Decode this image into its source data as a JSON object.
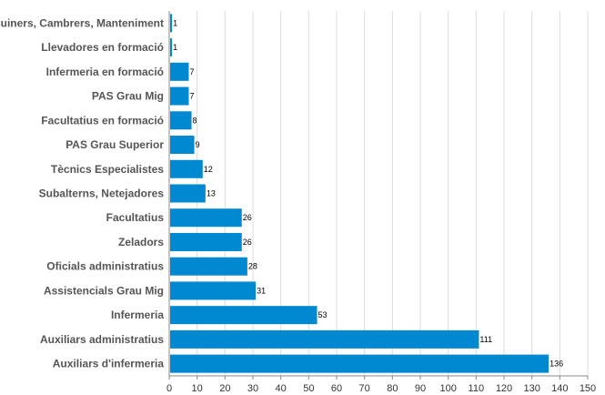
{
  "chart_data": {
    "type": "bar",
    "orientation": "horizontal",
    "categories": [
      "Cuiners, Cambrers, Manteniment",
      "Llevadores en formació",
      "Infermeria en formació",
      "PAS Grau Mig",
      "Facultatius en formació",
      "PAS Grau Superior",
      "Tècnics Especialistes",
      "Subalterns, Netejadores",
      "Facultatius",
      "Zeladors",
      "Oficials administratius",
      "Assistencials Grau Mig",
      "Infermeria",
      "Auxiliars administratius",
      "Auxiliars d'infermeria"
    ],
    "values": [
      1,
      1,
      7,
      7,
      8,
      9,
      12,
      13,
      26,
      26,
      28,
      31,
      53,
      111,
      136
    ],
    "xlim": [
      0,
      150
    ],
    "xticks": [
      0,
      10,
      20,
      30,
      40,
      50,
      60,
      70,
      80,
      90,
      100,
      110,
      120,
      130,
      140,
      150
    ],
    "grid": true,
    "bar_color": "#0088d1"
  }
}
